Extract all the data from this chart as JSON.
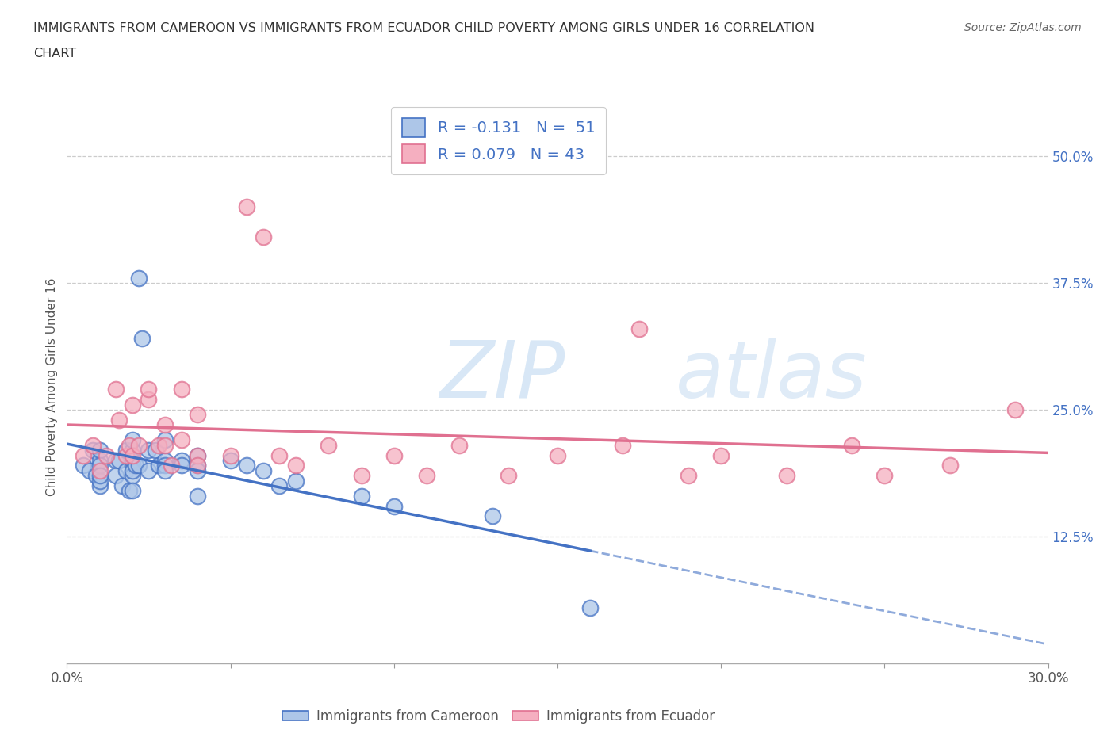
{
  "title_line1": "IMMIGRANTS FROM CAMEROON VS IMMIGRANTS FROM ECUADOR CHILD POVERTY AMONG GIRLS UNDER 16 CORRELATION",
  "title_line2": "CHART",
  "source": "Source: ZipAtlas.com",
  "ylabel": "Child Poverty Among Girls Under 16",
  "xlim": [
    0.0,
    0.3
  ],
  "ylim": [
    0.0,
    0.545
  ],
  "xtick_labels": [
    "0.0%",
    "",
    "",
    "",
    "",
    "",
    "30.0%"
  ],
  "xtick_values": [
    0.0,
    0.05,
    0.1,
    0.15,
    0.2,
    0.25,
    0.3
  ],
  "ytick_labels": [
    "12.5%",
    "25.0%",
    "37.5%",
    "50.0%"
  ],
  "ytick_values": [
    0.125,
    0.25,
    0.375,
    0.5
  ],
  "R_cameroon": -0.131,
  "N_cameroon": 51,
  "R_ecuador": 0.079,
  "N_ecuador": 43,
  "color_cameroon": "#adc6e8",
  "color_ecuador": "#f5afc0",
  "line_color_cameroon": "#4472c4",
  "line_color_ecuador": "#e07090",
  "background_color": "#ffffff",
  "cameroon_x": [
    0.005,
    0.007,
    0.008,
    0.009,
    0.01,
    0.01,
    0.01,
    0.01,
    0.01,
    0.01,
    0.015,
    0.015,
    0.016,
    0.017,
    0.018,
    0.018,
    0.019,
    0.02,
    0.02,
    0.02,
    0.02,
    0.02,
    0.02,
    0.02,
    0.021,
    0.022,
    0.022,
    0.023,
    0.025,
    0.025,
    0.027,
    0.028,
    0.03,
    0.03,
    0.03,
    0.03,
    0.035,
    0.035,
    0.04,
    0.04,
    0.04,
    0.04,
    0.05,
    0.055,
    0.06,
    0.065,
    0.07,
    0.09,
    0.1,
    0.13,
    0.16
  ],
  "cameroon_y": [
    0.195,
    0.19,
    0.21,
    0.185,
    0.2,
    0.21,
    0.175,
    0.18,
    0.195,
    0.185,
    0.2,
    0.185,
    0.2,
    0.175,
    0.19,
    0.21,
    0.17,
    0.195,
    0.185,
    0.17,
    0.21,
    0.2,
    0.19,
    0.22,
    0.195,
    0.195,
    0.38,
    0.32,
    0.21,
    0.19,
    0.21,
    0.195,
    0.22,
    0.2,
    0.195,
    0.19,
    0.2,
    0.195,
    0.195,
    0.205,
    0.165,
    0.19,
    0.2,
    0.195,
    0.19,
    0.175,
    0.18,
    0.165,
    0.155,
    0.145,
    0.055
  ],
  "ecuador_x": [
    0.005,
    0.008,
    0.01,
    0.012,
    0.015,
    0.016,
    0.018,
    0.019,
    0.02,
    0.02,
    0.022,
    0.025,
    0.025,
    0.028,
    0.03,
    0.03,
    0.032,
    0.035,
    0.035,
    0.04,
    0.04,
    0.04,
    0.05,
    0.055,
    0.06,
    0.065,
    0.07,
    0.08,
    0.09,
    0.1,
    0.11,
    0.12,
    0.135,
    0.15,
    0.17,
    0.175,
    0.19,
    0.2,
    0.22,
    0.24,
    0.25,
    0.27,
    0.29
  ],
  "ecuador_y": [
    0.205,
    0.215,
    0.19,
    0.205,
    0.27,
    0.24,
    0.205,
    0.215,
    0.205,
    0.255,
    0.215,
    0.26,
    0.27,
    0.215,
    0.235,
    0.215,
    0.195,
    0.22,
    0.27,
    0.205,
    0.195,
    0.245,
    0.205,
    0.45,
    0.42,
    0.205,
    0.195,
    0.215,
    0.185,
    0.205,
    0.185,
    0.215,
    0.185,
    0.205,
    0.215,
    0.33,
    0.185,
    0.205,
    0.185,
    0.215,
    0.185,
    0.195,
    0.25
  ]
}
